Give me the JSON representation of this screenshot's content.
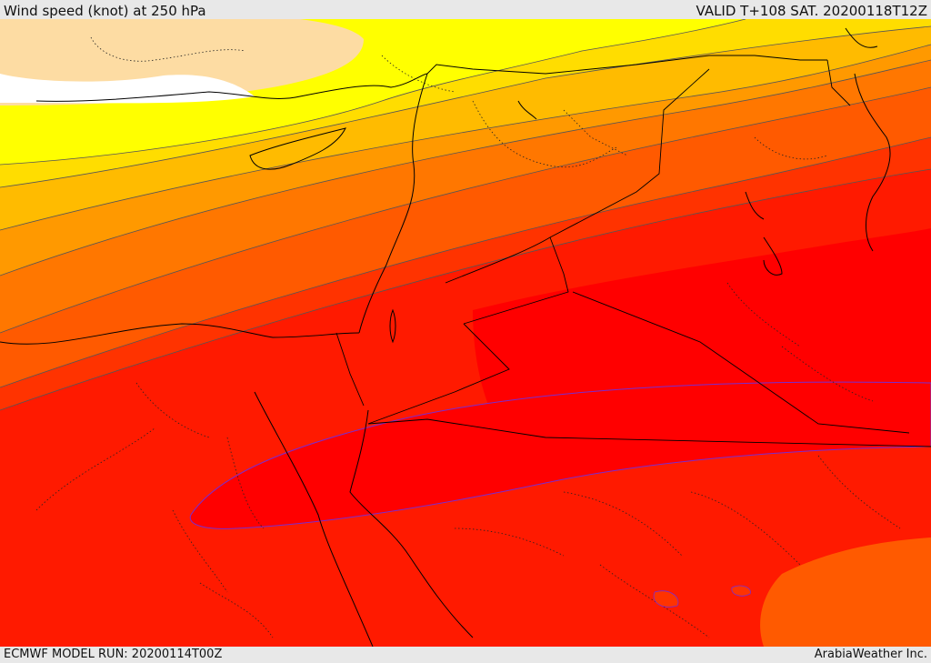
{
  "header": {
    "title": "Wind speed (knot) at 250 hPa",
    "valid": "VALID T+108 SAT. 20200118T12Z"
  },
  "footer": {
    "model_run": "ECMWF MODEL RUN: 20200114T00Z",
    "credit": "ArabiaWeather Inc."
  },
  "colors": {
    "white": "#ffffff",
    "wheat": "#fddca3",
    "yellow": "#ffff00",
    "gold": "#ffdd00",
    "amber": "#ffbb00",
    "orange1": "#ff9900",
    "orange2": "#ff7700",
    "orange3": "#ff5a00",
    "red1": "#ff3300",
    "red2": "#ff1a00",
    "red3": "#ff0000",
    "coast": "#000000",
    "contour": "#555555",
    "core_edge": "#7a2bd0"
  }
}
